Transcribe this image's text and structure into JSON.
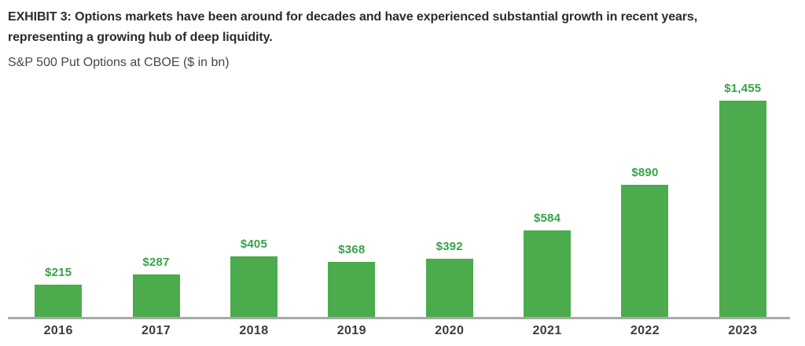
{
  "header": {
    "title": "EXHIBIT 3: Options markets have been around for decades and have experienced substantial growth in recent years, representing a growing hub of deep liquidity.",
    "subtitle": "S&P 500 Put Options at CBOE ($ in bn)"
  },
  "colors": {
    "bar": "#4cab4d",
    "value_label": "#38a24a",
    "title_text": "#2d2b28",
    "subtitle_text": "#474747",
    "year_label": "#3c3c3c",
    "axis_line": "#a9a9a9"
  },
  "chart_data": {
    "type": "bar",
    "categories": [
      "2016",
      "2017",
      "2018",
      "2019",
      "2020",
      "2021",
      "2022",
      "2023"
    ],
    "values": [
      215,
      287,
      405,
      368,
      392,
      584,
      890,
      1455
    ],
    "value_labels": [
      "$215",
      "$287",
      "$405",
      "$368",
      "$392",
      "$584",
      "$890",
      "$1,455"
    ],
    "title": "S&P 500 Put Options at CBOE ($ in bn)",
    "xlabel": "",
    "ylabel": "",
    "ylim": [
      0,
      1500
    ],
    "grid": false,
    "legend": false,
    "data_labels_position": "above-bar",
    "bar_color": "#4cab4d"
  }
}
